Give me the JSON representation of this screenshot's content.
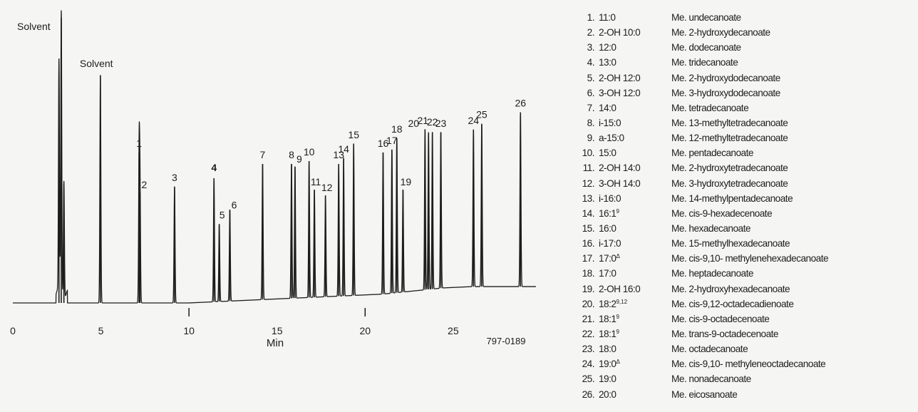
{
  "colors": {
    "background": "#f5f5f4",
    "ink": "#1d1d1b",
    "code": "#9a9a98"
  },
  "figure_code": "797-0189",
  "chart_data": {
    "type": "line",
    "xlabel": "Min",
    "xlim": [
      0,
      29.7
    ],
    "xticks": [
      0,
      5,
      10,
      15,
      20,
      25
    ],
    "ylim": [
      0,
      100
    ],
    "grid": false,
    "legend": "right",
    "solvent_labels": [
      {
        "label": "Solvent",
        "x": 2.9
      },
      {
        "label": "Solvent",
        "x": 4.85
      }
    ],
    "peaks": [
      {
        "x": 2.75,
        "y": 100
      },
      {
        "x": 2.62,
        "y": 81
      },
      {
        "x": 2.9,
        "y": 42
      },
      {
        "x": 4.97,
        "y": 80
      },
      {
        "x": 7.17,
        "y": 53,
        "label": "1"
      },
      {
        "x": 7.22,
        "y": 39,
        "label": "2"
      },
      {
        "x": 9.18,
        "y": 41,
        "label": "3"
      },
      {
        "x": 11.42,
        "y": 44,
        "label": "4"
      },
      {
        "x": 11.72,
        "y": 28,
        "label": "5"
      },
      {
        "x": 12.32,
        "y": 33,
        "label": "6"
      },
      {
        "x": 14.18,
        "y": 49,
        "label": "7"
      },
      {
        "x": 15.82,
        "y": 49,
        "label": "8"
      },
      {
        "x": 16.02,
        "y": 48,
        "label": "9"
      },
      {
        "x": 16.82,
        "y": 50,
        "label": "10"
      },
      {
        "x": 17.12,
        "y": 40,
        "label": "11"
      },
      {
        "x": 17.75,
        "y": 38,
        "label": "12"
      },
      {
        "x": 18.5,
        "y": 49,
        "label": "13"
      },
      {
        "x": 18.78,
        "y": 51,
        "label": "14"
      },
      {
        "x": 19.35,
        "y": 56,
        "label": "15"
      },
      {
        "x": 21.02,
        "y": 53,
        "label": "16"
      },
      {
        "x": 21.52,
        "y": 54,
        "label": "17"
      },
      {
        "x": 21.8,
        "y": 58,
        "label": "18"
      },
      {
        "x": 22.15,
        "y": 40,
        "label": "19"
      },
      {
        "x": 23.4,
        "y": 61,
        "label": "20"
      },
      {
        "x": 23.6,
        "y": 60,
        "label": "21"
      },
      {
        "x": 23.82,
        "y": 60,
        "label": "22"
      },
      {
        "x": 24.3,
        "y": 60,
        "label": "23"
      },
      {
        "x": 26.15,
        "y": 61,
        "label": "24"
      },
      {
        "x": 26.62,
        "y": 63,
        "label": "25"
      },
      {
        "x": 28.82,
        "y": 67,
        "label": "26"
      }
    ]
  },
  "legend_items": [
    {
      "num": "1.",
      "code": "11:0",
      "sup": "",
      "name": "Me. undecanoate"
    },
    {
      "num": "2.",
      "code": "2-OH 10:0",
      "sup": "",
      "name": "Me. 2-hydroxydecanoate"
    },
    {
      "num": "3.",
      "code": "12:0",
      "sup": "",
      "name": "Me. dodecanoate"
    },
    {
      "num": "4.",
      "code": "13:0",
      "sup": "",
      "name": "Me. tridecanoate"
    },
    {
      "num": "5.",
      "code": "2-OH 12:0",
      "sup": "",
      "name": "Me. 2-hydroxydodecanoate"
    },
    {
      "num": "6.",
      "code": "3-OH 12:0",
      "sup": "",
      "name": "Me. 3-hydroxydodecanoate"
    },
    {
      "num": "7.",
      "code": "14:0",
      "sup": "",
      "name": "Me. tetradecanoate"
    },
    {
      "num": "8.",
      "code": "i-15:0",
      "sup": "",
      "name": "Me. 13-methyltetradecanoate"
    },
    {
      "num": "9.",
      "code": "a-15:0",
      "sup": "",
      "name": "Me. 12-methyltetradecanoate"
    },
    {
      "num": "10.",
      "code": "15:0",
      "sup": "",
      "name": "Me. pentadecanoate"
    },
    {
      "num": "11.",
      "code": "2-OH 14:0",
      "sup": "",
      "name": "Me. 2-hydroxytetradecanoate"
    },
    {
      "num": "12.",
      "code": "3-OH 14:0",
      "sup": "",
      "name": "Me. 3-hydroxytetradecanoate"
    },
    {
      "num": "13.",
      "code": "i-16:0",
      "sup": "",
      "name": "Me. 14-methylpentadecanoate"
    },
    {
      "num": "14.",
      "code": "16:1",
      "sup": "9",
      "name": "Me. cis-9-hexadecenoate"
    },
    {
      "num": "15.",
      "code": "16:0",
      "sup": "",
      "name": "Me. hexadecanoate"
    },
    {
      "num": "16.",
      "code": "i-17:0",
      "sup": "",
      "name": "Me. 15-methylhexadecanoate"
    },
    {
      "num": "17.",
      "code": "17:0",
      "sup": "Δ",
      "name": "Me. cis-9,10- methylenehexadecanoate"
    },
    {
      "num": "18.",
      "code": "17:0",
      "sup": "",
      "name": "Me. heptadecanoate"
    },
    {
      "num": "19.",
      "code": "2-OH 16:0",
      "sup": "",
      "name": "Me. 2-hydroxyhexadecanoate"
    },
    {
      "num": "20.",
      "code": "18:2",
      "sup": "9,12",
      "name": "Me. cis-9,12-octadecadienoate"
    },
    {
      "num": "21.",
      "code": "18:1",
      "sup": "9",
      "name": "Me. cis-9-octadecenoate"
    },
    {
      "num": "22.",
      "code": "18:1",
      "sup": "9",
      "name": "Me. trans-9-octadecenoate"
    },
    {
      "num": "23.",
      "code": "18:0",
      "sup": "",
      "name": "Me. octadecanoate"
    },
    {
      "num": "24.",
      "code": "19:0",
      "sup": "Δ",
      "name": "Me. cis-9,10- methyleneoctadecanoate"
    },
    {
      "num": "25.",
      "code": "19:0",
      "sup": "",
      "name": "Me. nonadecanoate"
    },
    {
      "num": "26.",
      "code": "20:0",
      "sup": "",
      "name": "Me. eicosanoate"
    }
  ]
}
